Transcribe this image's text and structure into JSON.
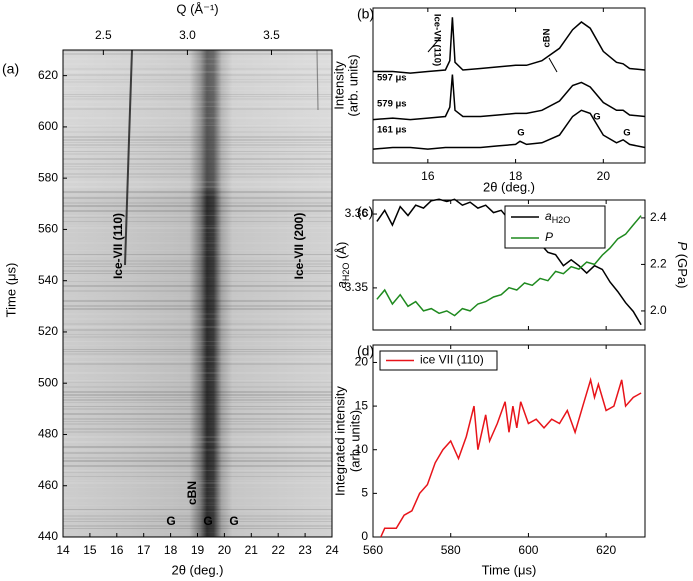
{
  "panel_labels": [
    "(a)",
    "(b)",
    "(c)",
    "(d)"
  ],
  "chart_data": [
    {
      "type": "image",
      "xlabel": "2θ (deg.)",
      "ylabel": "Time (μs)",
      "x2label": "Q (Å⁻¹)",
      "xlim": [
        14,
        24
      ],
      "xticks": [
        14,
        15,
        16,
        17,
        18,
        19,
        20,
        21,
        22,
        23,
        24
      ],
      "ylim": [
        440,
        630
      ],
      "yticks": [
        440,
        460,
        480,
        500,
        520,
        540,
        560,
        580,
        600,
        620
      ],
      "x2lim": [
        2.26,
        3.86
      ],
      "x2ticks": [
        2.5,
        {
          "value": 3,
          "label": "3.0"
        },
        3.5
      ],
      "annotations": [
        {
          "text": "Ice-VII (110)",
          "color": "#2b2bd6"
        },
        {
          "text": "Ice-VII (200)",
          "color": "#2b2bd6"
        },
        {
          "text": "cBN",
          "color": "#1a8c1a"
        },
        {
          "text": "G",
          "color": "#e02020"
        },
        {
          "text": "G",
          "color": "#e02020"
        },
        {
          "text": "G",
          "color": "#e02020"
        }
      ]
    },
    {
      "type": "line",
      "xlabel": "2θ (deg.)",
      "ylabel": [
        "Intensity",
        "(arb. units)"
      ],
      "xlim": [
        14.75,
        20.95
      ],
      "xticks": [
        16,
        18,
        20
      ],
      "ylim": [
        0,
        10
      ],
      "x": [
        14.75,
        15.2,
        15.6,
        16.0,
        16.4,
        16.5,
        16.56,
        16.62,
        16.8,
        17.2,
        17.6,
        18.0,
        18.1,
        18.25,
        18.6,
        19.0,
        19.3,
        19.5,
        19.7,
        20.0,
        20.3,
        20.45,
        20.6,
        20.95
      ],
      "series": [
        {
          "name": "597 μs",
          "color": "#000000",
          "values": [
            5.9,
            5.9,
            5.8,
            5.9,
            6.0,
            6.6,
            9.4,
            6.5,
            6.0,
            6.1,
            6.2,
            6.3,
            6.3,
            6.3,
            6.6,
            7.4,
            8.6,
            9.1,
            8.7,
            7.2,
            6.5,
            6.4,
            6.1,
            6.0
          ]
        },
        {
          "name": "579 μs",
          "color": "#000000",
          "values": [
            2.8,
            2.9,
            2.8,
            2.9,
            3.0,
            3.6,
            5.7,
            3.4,
            3.0,
            3.0,
            3.1,
            3.2,
            3.2,
            3.2,
            3.4,
            4.0,
            5.0,
            5.2,
            4.9,
            3.9,
            3.4,
            3.4,
            3.1,
            3.0
          ]
        },
        {
          "name": "161 μs",
          "color": "#000000",
          "values": [
            0.9,
            1.0,
            1.0,
            0.9,
            1.0,
            1.0,
            1.0,
            1.0,
            1.0,
            1.0,
            1.1,
            1.2,
            1.4,
            1.2,
            1.3,
            1.8,
            3.0,
            3.4,
            3.2,
            1.8,
            1.3,
            1.5,
            1.2,
            1.0
          ]
        }
      ],
      "annotations": [
        {
          "text": "Ice-VII (110)"
        },
        {
          "text": "cBN"
        },
        {
          "text": "G"
        },
        {
          "text": "G"
        },
        {
          "text": "G"
        }
      ]
    },
    {
      "type": "line",
      "ylabel": [
        "a",
        "H2O",
        " (Å)"
      ],
      "y2label": [
        "P",
        " (GPa)"
      ],
      "xlim": [
        560,
        630
      ],
      "xticks": [
        560,
        580,
        600,
        620
      ],
      "ylim": [
        3.3443,
        3.3619
      ],
      "yticks": [
        3.35,
        3.36
      ],
      "y2lim": [
        1.918,
        2.477
      ],
      "y2ticks": [
        {
          "value": 2,
          "label": "2.0"
        },
        2.2,
        2.4
      ],
      "legend": "upper right",
      "x": [
        561,
        563,
        565,
        567,
        569,
        571,
        573,
        575,
        577,
        579,
        581,
        583,
        585,
        587,
        589,
        591,
        593,
        595,
        597,
        599,
        601,
        603,
        605,
        607,
        609,
        611,
        613,
        615,
        617,
        619,
        621,
        623,
        625,
        627,
        629
      ],
      "series": [
        {
          "name": "a",
          "name_sub": "H2O",
          "color": "#000000",
          "values": [
            3.359,
            3.3605,
            3.3585,
            3.361,
            3.3598,
            3.3612,
            3.3608,
            3.3618,
            3.362,
            3.3617,
            3.362,
            3.3612,
            3.3616,
            3.3608,
            3.3612,
            3.3602,
            3.3605,
            3.3592,
            3.3582,
            3.3575,
            3.3568,
            3.356,
            3.3548,
            3.3545,
            3.353,
            3.3538,
            3.353,
            3.352,
            3.353,
            3.3525,
            3.3508,
            3.3495,
            3.348,
            3.3468,
            3.345
          ]
        },
        {
          "name": "P",
          "color": "#1f8a1f",
          "axis": "y2",
          "values": [
            2.05,
            2.09,
            2.03,
            2.07,
            2.02,
            2.04,
            2.0,
            2.01,
            1.99,
            2.0,
            1.98,
            2.01,
            2.0,
            2.03,
            2.04,
            2.06,
            2.07,
            2.1,
            2.09,
            2.12,
            2.11,
            2.14,
            2.13,
            2.17,
            2.16,
            2.19,
            2.18,
            2.21,
            2.2,
            2.24,
            2.27,
            2.31,
            2.33,
            2.37,
            2.41
          ]
        }
      ]
    },
    {
      "type": "line",
      "xlabel": "Time (μs)",
      "ylabel": [
        "Integrated intensity",
        "(arb. units)"
      ],
      "xlim": [
        560,
        630
      ],
      "xticks": [
        560,
        580,
        600,
        620
      ],
      "ylim": [
        0,
        22
      ],
      "yticks": [
        0,
        5,
        10,
        15,
        20
      ],
      "legend": "upper left",
      "x": [
        562,
        563,
        566,
        568,
        570,
        572,
        574,
        576,
        578,
        580,
        582,
        584,
        586,
        587,
        589,
        590,
        592,
        594,
        595,
        596,
        597,
        598,
        600,
        602,
        604,
        606,
        608,
        610,
        612,
        614,
        616,
        617,
        618,
        620,
        622,
        624,
        625,
        627,
        629
      ],
      "series": [
        {
          "name": "ice VII (110)",
          "color": "#e8141a",
          "values": [
            0,
            1,
            1,
            2.5,
            3,
            5,
            6,
            8.5,
            10,
            11,
            9,
            11.5,
            15,
            10,
            14,
            11,
            13,
            15.5,
            12,
            15,
            12.5,
            15.5,
            13,
            13.5,
            12.5,
            13.5,
            13,
            14.5,
            12,
            15,
            18,
            16,
            17.5,
            14.5,
            15,
            18,
            15,
            16,
            16.5
          ]
        }
      ]
    }
  ]
}
